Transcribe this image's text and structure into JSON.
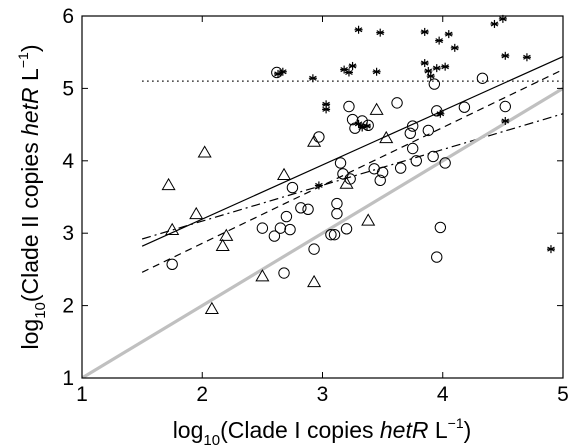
{
  "chart_data": {
    "type": "scatter",
    "title": "",
    "xlabel": {
      "parts": [
        "log",
        "10",
        "(Clade I copies  ",
        "hetR",
        " L",
        "−1",
        ")"
      ]
    },
    "ylabel": {
      "parts": [
        "log",
        "10",
        "(Clade II copies  ",
        "hetR",
        " L",
        "−1",
        ")"
      ]
    },
    "xlim": [
      1,
      5
    ],
    "ylim": [
      1,
      6
    ],
    "x_ticks": [
      "1",
      "2",
      "3",
      "4",
      "5"
    ],
    "y_ticks": [
      "1",
      "2",
      "3",
      "4",
      "5",
      "6"
    ],
    "grid": false,
    "legend": "none",
    "series": [
      {
        "marker": "circle",
        "color": "#000000",
        "points": [
          [
            1.75,
            2.57
          ],
          [
            2.5,
            3.07
          ],
          [
            2.6,
            2.96
          ],
          [
            2.62,
            5.22
          ],
          [
            2.65,
            3.07
          ],
          [
            2.68,
            2.45
          ],
          [
            2.7,
            3.23
          ],
          [
            2.73,
            3.05
          ],
          [
            2.75,
            3.63
          ],
          [
            2.82,
            3.35
          ],
          [
            2.88,
            3.33
          ],
          [
            2.93,
            2.78
          ],
          [
            2.97,
            4.33
          ],
          [
            3.07,
            2.98
          ],
          [
            3.1,
            2.98
          ],
          [
            3.12,
            3.27
          ],
          [
            3.12,
            3.41
          ],
          [
            3.15,
            3.97
          ],
          [
            3.17,
            3.82
          ],
          [
            3.2,
            3.06
          ],
          [
            3.22,
            4.75
          ],
          [
            3.23,
            3.75
          ],
          [
            3.25,
            4.57
          ],
          [
            3.27,
            4.45
          ],
          [
            3.33,
            4.55
          ],
          [
            3.38,
            4.49
          ],
          [
            3.43,
            3.89
          ],
          [
            3.48,
            3.73
          ],
          [
            3.5,
            3.84
          ],
          [
            3.62,
            4.8
          ],
          [
            3.65,
            3.9
          ],
          [
            3.73,
            4.38
          ],
          [
            3.75,
            4.17
          ],
          [
            3.75,
            4.48
          ],
          [
            3.78,
            4.0
          ],
          [
            3.88,
            4.42
          ],
          [
            3.92,
            4.06
          ],
          [
            3.93,
            5.06
          ],
          [
            3.95,
            2.67
          ],
          [
            3.95,
            4.69
          ],
          [
            3.98,
            3.08
          ],
          [
            4.02,
            3.97
          ],
          [
            4.18,
            4.74
          ],
          [
            4.33,
            5.14
          ],
          [
            4.52,
            4.75
          ]
        ]
      },
      {
        "marker": "triangle",
        "color": "#000000",
        "points": [
          [
            1.72,
            3.66
          ],
          [
            1.75,
            3.04
          ],
          [
            1.95,
            3.26
          ],
          [
            2.02,
            4.11
          ],
          [
            2.08,
            1.95
          ],
          [
            2.17,
            2.82
          ],
          [
            2.2,
            2.96
          ],
          [
            2.5,
            2.4
          ],
          [
            2.68,
            3.8
          ],
          [
            2.93,
            4.26
          ],
          [
            2.93,
            2.32
          ],
          [
            3.2,
            3.68
          ],
          [
            3.38,
            3.17
          ],
          [
            3.45,
            4.7
          ],
          [
            3.53,
            4.31
          ]
        ]
      },
      {
        "marker": "asterisk",
        "color": "#000000",
        "points": [
          [
            2.63,
            5.2
          ],
          [
            2.67,
            5.23
          ],
          [
            2.92,
            5.14
          ],
          [
            2.97,
            3.66
          ],
          [
            3.03,
            4.71
          ],
          [
            3.03,
            4.78
          ],
          [
            3.18,
            5.26
          ],
          [
            3.22,
            5.22
          ],
          [
            3.25,
            5.31
          ],
          [
            3.3,
            4.51
          ],
          [
            3.3,
            5.81
          ],
          [
            3.33,
            4.46
          ],
          [
            3.37,
            4.48
          ],
          [
            3.45,
            5.23
          ],
          [
            3.48,
            5.77
          ],
          [
            3.85,
            5.78
          ],
          [
            3.85,
            5.35
          ],
          [
            3.88,
            5.24
          ],
          [
            3.9,
            5.17
          ],
          [
            3.95,
            5.28
          ],
          [
            3.97,
            5.66
          ],
          [
            3.98,
            4.65
          ],
          [
            4.02,
            5.3
          ],
          [
            4.05,
            5.75
          ],
          [
            4.1,
            5.56
          ],
          [
            4.43,
            5.89
          ],
          [
            4.5,
            5.96
          ],
          [
            4.52,
            5.45
          ],
          [
            4.52,
            4.55
          ],
          [
            4.7,
            5.43
          ],
          [
            4.9,
            2.78
          ]
        ]
      }
    ],
    "lines": [
      {
        "style": "solid",
        "color": "#000000",
        "points": [
          [
            1.5,
            2.82
          ],
          [
            5.0,
            5.44
          ]
        ]
      },
      {
        "style": "dashed",
        "color": "#000000",
        "points": [
          [
            1.5,
            2.46
          ],
          [
            5.0,
            5.26
          ]
        ]
      },
      {
        "style": "dashdot",
        "color": "#000000",
        "points": [
          [
            1.5,
            2.92
          ],
          [
            5.0,
            4.65
          ]
        ]
      },
      {
        "style": "solid-thick",
        "color": "#c0c0c0",
        "points": [
          [
            1.0,
            1.0
          ],
          [
            5.0,
            5.0
          ]
        ]
      },
      {
        "style": "dotted",
        "color": "#000000",
        "points": [
          [
            1.5,
            5.1
          ],
          [
            5.0,
            5.1
          ]
        ]
      }
    ]
  }
}
